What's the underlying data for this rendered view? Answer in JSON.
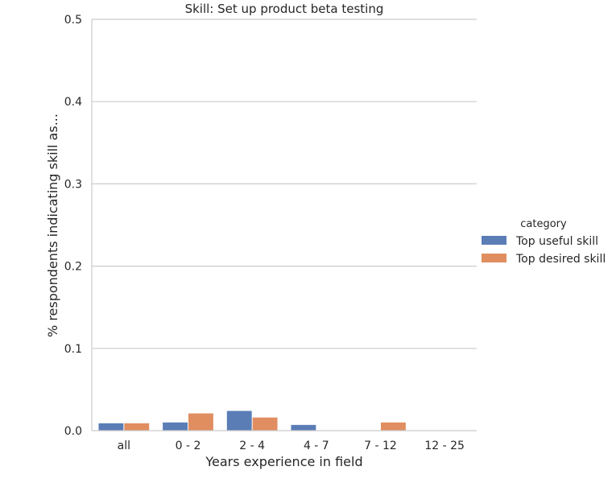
{
  "chart_data": {
    "type": "bar",
    "title": "Skill: Set up product beta testing",
    "xlabel": "Years experience in field",
    "ylabel": "% respondents indicating skill as...",
    "categories": [
      "all",
      "0 - 2",
      "2 - 4",
      "4 - 7",
      "7 - 12",
      "12 - 25"
    ],
    "ylim": [
      0,
      0.5
    ],
    "yticks": [
      "0.0",
      "0.1",
      "0.2",
      "0.3",
      "0.4",
      "0.5"
    ],
    "grid": "horizontal",
    "legend": {
      "title": "category",
      "placement": "right"
    },
    "series": [
      {
        "name": "Top useful skill",
        "color": "#4c72b0",
        "values": [
          0.009,
          0.01,
          0.024,
          0.007,
          0.0,
          0.0
        ]
      },
      {
        "name": "Top desired skill",
        "color": "#dd8452",
        "values": [
          0.009,
          0.021,
          0.016,
          0.0,
          0.01,
          0.0
        ]
      }
    ]
  }
}
